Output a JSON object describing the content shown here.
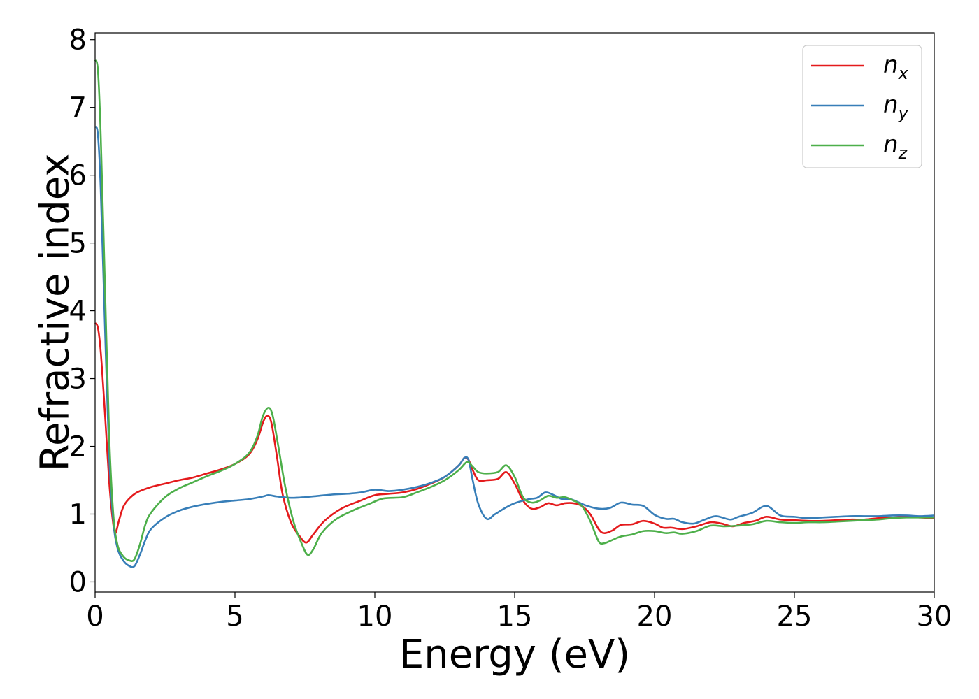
{
  "chart_data": {
    "type": "line",
    "title": "",
    "xlabel": "Energy (eV)",
    "ylabel": "Refractive index",
    "xlim": [
      0,
      30
    ],
    "ylim": [
      -0.15,
      8.1
    ],
    "xticks": [
      0,
      5,
      10,
      15,
      20,
      25,
      30
    ],
    "yticks": [
      0,
      1,
      2,
      3,
      4,
      5,
      6,
      7,
      8
    ],
    "grid": false,
    "legend_position": "top-right",
    "series": [
      {
        "name": "n_x",
        "legend_base": "n",
        "legend_sub": "x",
        "color": "#e41a1c",
        "points": [
          [
            0,
            3.82
          ],
          [
            0.1,
            3.75
          ],
          [
            0.2,
            3.4
          ],
          [
            0.35,
            2.5
          ],
          [
            0.5,
            1.5
          ],
          [
            0.62,
            0.95
          ],
          [
            0.72,
            0.72
          ],
          [
            0.85,
            0.9
          ],
          [
            1.0,
            1.1
          ],
          [
            1.2,
            1.22
          ],
          [
            1.5,
            1.32
          ],
          [
            2,
            1.4
          ],
          [
            2.5,
            1.45
          ],
          [
            3,
            1.5
          ],
          [
            3.5,
            1.54
          ],
          [
            4,
            1.6
          ],
          [
            4.5,
            1.66
          ],
          [
            5,
            1.74
          ],
          [
            5.5,
            1.88
          ],
          [
            5.8,
            2.1
          ],
          [
            6.0,
            2.35
          ],
          [
            6.15,
            2.45
          ],
          [
            6.3,
            2.35
          ],
          [
            6.5,
            1.85
          ],
          [
            6.7,
            1.3
          ],
          [
            7.0,
            0.88
          ],
          [
            7.3,
            0.68
          ],
          [
            7.55,
            0.58
          ],
          [
            7.8,
            0.7
          ],
          [
            8.2,
            0.9
          ],
          [
            8.8,
            1.08
          ],
          [
            9.5,
            1.2
          ],
          [
            10,
            1.28
          ],
          [
            10.5,
            1.3
          ],
          [
            11,
            1.32
          ],
          [
            11.5,
            1.37
          ],
          [
            12,
            1.45
          ],
          [
            12.5,
            1.55
          ],
          [
            13,
            1.72
          ],
          [
            13.2,
            1.83
          ],
          [
            13.35,
            1.8
          ],
          [
            13.5,
            1.65
          ],
          [
            13.7,
            1.5
          ],
          [
            14,
            1.5
          ],
          [
            14.4,
            1.52
          ],
          [
            14.7,
            1.62
          ],
          [
            15,
            1.45
          ],
          [
            15.3,
            1.2
          ],
          [
            15.6,
            1.08
          ],
          [
            15.9,
            1.1
          ],
          [
            16.2,
            1.16
          ],
          [
            16.5,
            1.13
          ],
          [
            16.8,
            1.16
          ],
          [
            17.1,
            1.16
          ],
          [
            17.4,
            1.12
          ],
          [
            17.7,
            1.0
          ],
          [
            18.0,
            0.78
          ],
          [
            18.2,
            0.72
          ],
          [
            18.5,
            0.76
          ],
          [
            18.8,
            0.84
          ],
          [
            19.2,
            0.85
          ],
          [
            19.6,
            0.9
          ],
          [
            20,
            0.86
          ],
          [
            20.3,
            0.8
          ],
          [
            20.6,
            0.8
          ],
          [
            21,
            0.78
          ],
          [
            21.5,
            0.82
          ],
          [
            22,
            0.88
          ],
          [
            22.4,
            0.86
          ],
          [
            22.8,
            0.82
          ],
          [
            23.2,
            0.87
          ],
          [
            23.6,
            0.9
          ],
          [
            24,
            0.96
          ],
          [
            24.5,
            0.92
          ],
          [
            25,
            0.91
          ],
          [
            25.5,
            0.9
          ],
          [
            26,
            0.9
          ],
          [
            26.5,
            0.91
          ],
          [
            27,
            0.92
          ],
          [
            27.5,
            0.92
          ],
          [
            28,
            0.94
          ],
          [
            28.5,
            0.95
          ],
          [
            29,
            0.96
          ],
          [
            29.5,
            0.95
          ],
          [
            30,
            0.94
          ]
        ]
      },
      {
        "name": "n_y",
        "legend_base": "n",
        "legend_sub": "y",
        "color": "#377eb8",
        "points": [
          [
            0,
            6.72
          ],
          [
            0.1,
            6.6
          ],
          [
            0.2,
            5.8
          ],
          [
            0.35,
            3.8
          ],
          [
            0.5,
            1.9
          ],
          [
            0.65,
            0.9
          ],
          [
            0.8,
            0.5
          ],
          [
            1.0,
            0.32
          ],
          [
            1.2,
            0.24
          ],
          [
            1.4,
            0.23
          ],
          [
            1.6,
            0.4
          ],
          [
            1.8,
            0.62
          ],
          [
            2.0,
            0.78
          ],
          [
            2.5,
            0.95
          ],
          [
            3,
            1.05
          ],
          [
            3.5,
            1.11
          ],
          [
            4,
            1.15
          ],
          [
            4.5,
            1.18
          ],
          [
            5,
            1.2
          ],
          [
            5.5,
            1.22
          ],
          [
            6,
            1.26
          ],
          [
            6.2,
            1.28
          ],
          [
            6.5,
            1.26
          ],
          [
            7,
            1.24
          ],
          [
            7.5,
            1.25
          ],
          [
            8,
            1.27
          ],
          [
            8.5,
            1.29
          ],
          [
            9,
            1.3
          ],
          [
            9.5,
            1.32
          ],
          [
            10,
            1.36
          ],
          [
            10.5,
            1.34
          ],
          [
            11,
            1.36
          ],
          [
            11.5,
            1.4
          ],
          [
            12,
            1.46
          ],
          [
            12.5,
            1.55
          ],
          [
            13,
            1.72
          ],
          [
            13.2,
            1.83
          ],
          [
            13.35,
            1.8
          ],
          [
            13.5,
            1.5
          ],
          [
            13.7,
            1.15
          ],
          [
            14,
            0.93
          ],
          [
            14.3,
            1.0
          ],
          [
            14.7,
            1.1
          ],
          [
            15,
            1.16
          ],
          [
            15.5,
            1.22
          ],
          [
            15.8,
            1.24
          ],
          [
            16.1,
            1.32
          ],
          [
            16.4,
            1.28
          ],
          [
            16.7,
            1.22
          ],
          [
            17,
            1.22
          ],
          [
            17.3,
            1.17
          ],
          [
            17.6,
            1.12
          ],
          [
            18,
            1.08
          ],
          [
            18.4,
            1.09
          ],
          [
            18.8,
            1.17
          ],
          [
            19.2,
            1.14
          ],
          [
            19.6,
            1.12
          ],
          [
            20,
            0.99
          ],
          [
            20.4,
            0.93
          ],
          [
            20.7,
            0.93
          ],
          [
            21,
            0.88
          ],
          [
            21.4,
            0.86
          ],
          [
            21.8,
            0.92
          ],
          [
            22.2,
            0.97
          ],
          [
            22.7,
            0.92
          ],
          [
            23,
            0.96
          ],
          [
            23.5,
            1.02
          ],
          [
            24,
            1.12
          ],
          [
            24.5,
            0.98
          ],
          [
            25,
            0.96
          ],
          [
            25.5,
            0.94
          ],
          [
            26,
            0.95
          ],
          [
            26.5,
            0.96
          ],
          [
            27,
            0.97
          ],
          [
            27.5,
            0.97
          ],
          [
            28,
            0.97
          ],
          [
            28.5,
            0.98
          ],
          [
            29,
            0.98
          ],
          [
            29.5,
            0.97
          ],
          [
            30,
            0.98
          ]
        ]
      },
      {
        "name": "n_z",
        "legend_base": "n",
        "legend_sub": "z",
        "color": "#4daf4a",
        "points": [
          [
            0,
            7.7
          ],
          [
            0.1,
            7.55
          ],
          [
            0.2,
            6.6
          ],
          [
            0.35,
            4.4
          ],
          [
            0.5,
            2.2
          ],
          [
            0.65,
            1.0
          ],
          [
            0.8,
            0.55
          ],
          [
            1.0,
            0.38
          ],
          [
            1.2,
            0.32
          ],
          [
            1.4,
            0.33
          ],
          [
            1.6,
            0.55
          ],
          [
            1.8,
            0.85
          ],
          [
            2.0,
            1.02
          ],
          [
            2.5,
            1.25
          ],
          [
            3,
            1.38
          ],
          [
            3.5,
            1.47
          ],
          [
            4,
            1.56
          ],
          [
            4.5,
            1.64
          ],
          [
            5,
            1.74
          ],
          [
            5.5,
            1.9
          ],
          [
            5.8,
            2.15
          ],
          [
            6.0,
            2.45
          ],
          [
            6.2,
            2.57
          ],
          [
            6.35,
            2.45
          ],
          [
            6.55,
            2.0
          ],
          [
            6.8,
            1.4
          ],
          [
            7.1,
            0.88
          ],
          [
            7.4,
            0.55
          ],
          [
            7.6,
            0.4
          ],
          [
            7.8,
            0.48
          ],
          [
            8.1,
            0.72
          ],
          [
            8.6,
            0.92
          ],
          [
            9.2,
            1.05
          ],
          [
            9.8,
            1.15
          ],
          [
            10.3,
            1.23
          ],
          [
            11,
            1.25
          ],
          [
            11.5,
            1.32
          ],
          [
            12,
            1.4
          ],
          [
            12.5,
            1.5
          ],
          [
            13,
            1.65
          ],
          [
            13.3,
            1.77
          ],
          [
            13.5,
            1.7
          ],
          [
            13.7,
            1.62
          ],
          [
            14,
            1.6
          ],
          [
            14.4,
            1.62
          ],
          [
            14.7,
            1.72
          ],
          [
            15,
            1.55
          ],
          [
            15.3,
            1.25
          ],
          [
            15.6,
            1.17
          ],
          [
            15.9,
            1.2
          ],
          [
            16.2,
            1.27
          ],
          [
            16.5,
            1.24
          ],
          [
            16.8,
            1.25
          ],
          [
            17.1,
            1.2
          ],
          [
            17.4,
            1.12
          ],
          [
            17.7,
            0.9
          ],
          [
            18.0,
            0.6
          ],
          [
            18.2,
            0.57
          ],
          [
            18.5,
            0.62
          ],
          [
            18.8,
            0.67
          ],
          [
            19.2,
            0.7
          ],
          [
            19.6,
            0.75
          ],
          [
            20,
            0.75
          ],
          [
            20.4,
            0.72
          ],
          [
            20.7,
            0.73
          ],
          [
            21,
            0.71
          ],
          [
            21.5,
            0.75
          ],
          [
            22,
            0.83
          ],
          [
            22.5,
            0.82
          ],
          [
            23,
            0.83
          ],
          [
            23.5,
            0.85
          ],
          [
            24,
            0.9
          ],
          [
            24.5,
            0.88
          ],
          [
            25,
            0.87
          ],
          [
            25.5,
            0.88
          ],
          [
            26,
            0.88
          ],
          [
            26.5,
            0.89
          ],
          [
            27,
            0.9
          ],
          [
            27.5,
            0.91
          ],
          [
            28,
            0.92
          ],
          [
            28.5,
            0.94
          ],
          [
            29,
            0.95
          ],
          [
            29.5,
            0.95
          ],
          [
            30,
            0.95
          ]
        ]
      }
    ]
  }
}
